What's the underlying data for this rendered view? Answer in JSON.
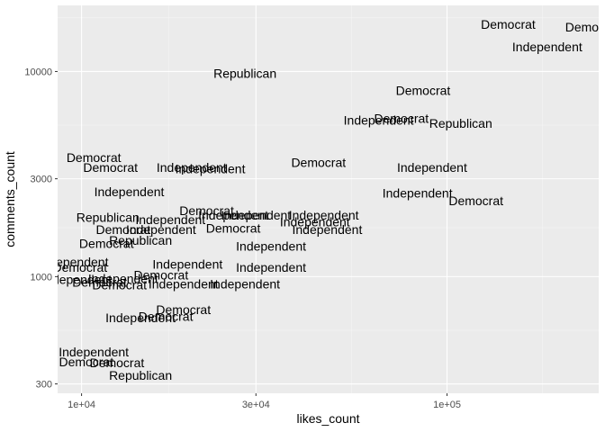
{
  "chart_data": {
    "type": "scatter",
    "geom": "text",
    "xlabel": "likes_count",
    "ylabel": "comments_count",
    "x_scale": "log10",
    "y_scale": "log10",
    "xlim": [
      8600,
      260000
    ],
    "ylim": [
      270,
      21000
    ],
    "x_ticks": [
      {
        "value": 10000,
        "label": "1e+04"
      },
      {
        "value": 30000,
        "label": "3e+04"
      },
      {
        "value": 100000,
        "label": "1e+05"
      }
    ],
    "y_ticks": [
      {
        "value": 300,
        "label": "300"
      },
      {
        "value": 1000,
        "label": "1000"
      },
      {
        "value": 3000,
        "label": "3000"
      },
      {
        "value": 10000,
        "label": "10000"
      }
    ],
    "grid": true,
    "legend": "none",
    "colors": {
      "panel": "#ebebeb",
      "grid_major": "#ffffff",
      "grid_minor": "#f5f5f5",
      "text": "#000000",
      "tick_text": "#4d4d4d",
      "tick_mark": "#333333"
    },
    "points": [
      {
        "x": 147000,
        "y": 17000,
        "label": "Democrat"
      },
      {
        "x": 250000,
        "y": 16500,
        "label": "Democrat"
      },
      {
        "x": 188000,
        "y": 13200,
        "label": "Independent"
      },
      {
        "x": 28000,
        "y": 9800,
        "label": "Republican"
      },
      {
        "x": 86000,
        "y": 8100,
        "label": "Democrat"
      },
      {
        "x": 75000,
        "y": 5900,
        "label": "Democrat"
      },
      {
        "x": 65000,
        "y": 5800,
        "label": "Independent"
      },
      {
        "x": 109000,
        "y": 5600,
        "label": "Republican"
      },
      {
        "x": 10800,
        "y": 3800,
        "label": "Democrat"
      },
      {
        "x": 12000,
        "y": 3400,
        "label": "Democrat"
      },
      {
        "x": 20000,
        "y": 3400,
        "label": "Independent"
      },
      {
        "x": 22500,
        "y": 3350,
        "label": "Independent"
      },
      {
        "x": 44500,
        "y": 3600,
        "label": "Democrat"
      },
      {
        "x": 91000,
        "y": 3400,
        "label": "Independent"
      },
      {
        "x": 13500,
        "y": 2600,
        "label": "Independent"
      },
      {
        "x": 83000,
        "y": 2550,
        "label": "Independent"
      },
      {
        "x": 120000,
        "y": 2350,
        "label": "Democrat"
      },
      {
        "x": 22000,
        "y": 2100,
        "label": "Democrat"
      },
      {
        "x": 26000,
        "y": 2000,
        "label": "Independent"
      },
      {
        "x": 30000,
        "y": 2000,
        "label": "Independent"
      },
      {
        "x": 46000,
        "y": 2000,
        "label": "Independent"
      },
      {
        "x": 11800,
        "y": 1950,
        "label": "Republican"
      },
      {
        "x": 17500,
        "y": 1900,
        "label": "Independent"
      },
      {
        "x": 43500,
        "y": 1850,
        "label": "Independent"
      },
      {
        "x": 13000,
        "y": 1700,
        "label": "Democrat"
      },
      {
        "x": 16500,
        "y": 1700,
        "label": "Independent"
      },
      {
        "x": 26000,
        "y": 1720,
        "label": "Democrat"
      },
      {
        "x": 47000,
        "y": 1700,
        "label": "Independent"
      },
      {
        "x": 14500,
        "y": 1500,
        "label": "Republican"
      },
      {
        "x": 11700,
        "y": 1450,
        "label": "Democrat"
      },
      {
        "x": 33000,
        "y": 1410,
        "label": "Independent"
      },
      {
        "x": 9500,
        "y": 1180,
        "label": "Independent"
      },
      {
        "x": 9900,
        "y": 1110,
        "label": "Democrat"
      },
      {
        "x": 19500,
        "y": 1150,
        "label": "Independent"
      },
      {
        "x": 16500,
        "y": 1020,
        "label": "Democrat"
      },
      {
        "x": 33000,
        "y": 1110,
        "label": "Independent"
      },
      {
        "x": 9700,
        "y": 970,
        "label": "Independent"
      },
      {
        "x": 13000,
        "y": 980,
        "label": "Independent"
      },
      {
        "x": 11200,
        "y": 940,
        "label": "Democrat"
      },
      {
        "x": 12700,
        "y": 910,
        "label": "Democrat"
      },
      {
        "x": 19000,
        "y": 920,
        "label": "Independent"
      },
      {
        "x": 28000,
        "y": 920,
        "label": "Independent"
      },
      {
        "x": 19000,
        "y": 690,
        "label": "Democrat"
      },
      {
        "x": 17000,
        "y": 640,
        "label": "Democrat"
      },
      {
        "x": 14500,
        "y": 630,
        "label": "Independent"
      },
      {
        "x": 10800,
        "y": 430,
        "label": "Independent"
      },
      {
        "x": 10300,
        "y": 385,
        "label": "Democrat"
      },
      {
        "x": 12500,
        "y": 380,
        "label": "Democrat"
      },
      {
        "x": 14500,
        "y": 330,
        "label": "Republican"
      }
    ]
  }
}
